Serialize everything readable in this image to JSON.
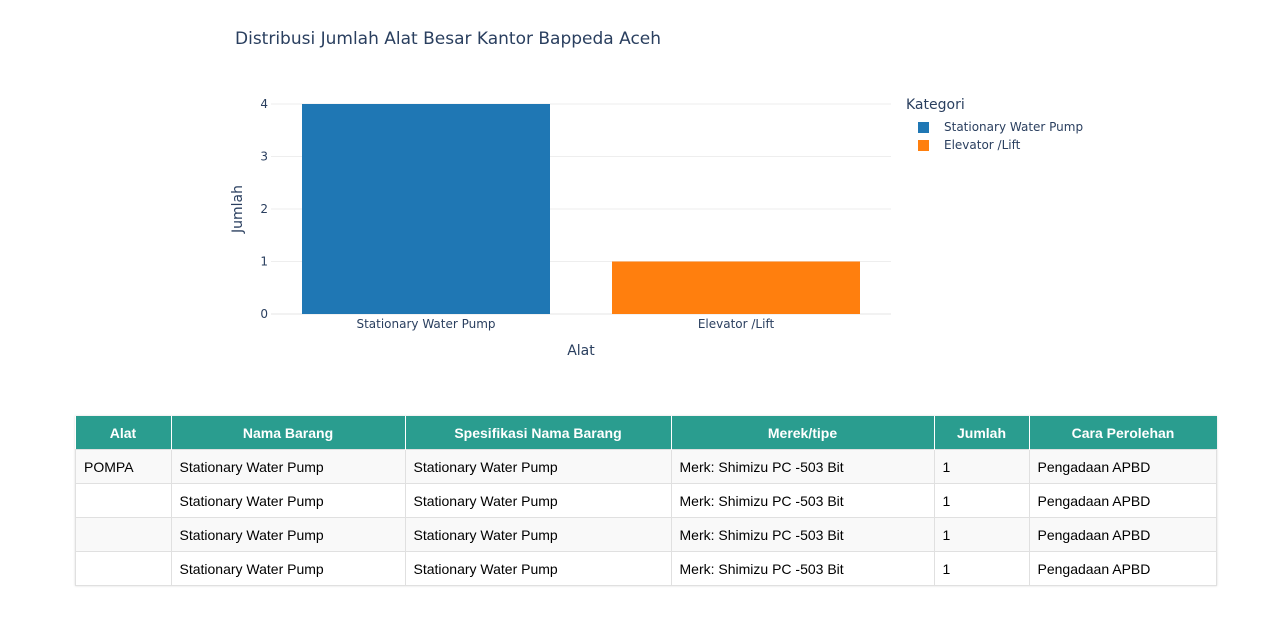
{
  "chart_data": {
    "type": "bar",
    "title": "Distribusi Jumlah Alat Besar Kantor Bappeda Aceh",
    "xlabel": "Alat",
    "ylabel": "Jumlah",
    "categories": [
      "Stationary Water Pump",
      "Elevator /Lift"
    ],
    "values": [
      4,
      1
    ],
    "colors": [
      "#1f77b4",
      "#ff7f0e"
    ],
    "ylim": [
      0,
      4
    ],
    "yticks": [
      0,
      1,
      2,
      3,
      4
    ],
    "grid": true,
    "legend_title": "Kategori",
    "legend": [
      {
        "label": "Stationary Water Pump",
        "color": "#1f77b4"
      },
      {
        "label": "Elevator /Lift",
        "color": "#ff7f0e"
      }
    ],
    "legend_position": "top-right"
  },
  "table": {
    "headers": [
      "Alat",
      "Nama Barang",
      "Spesifikasi Nama Barang",
      "Merek/tipe",
      "Jumlah",
      "Cara Perolehan"
    ],
    "rows": [
      [
        "POMPA",
        "Stationary Water Pump",
        "Stationary Water Pump",
        "Merk: Shimizu PC -503 Bit",
        "1",
        "Pengadaan APBD"
      ],
      [
        "",
        "Stationary Water Pump",
        "Stationary Water Pump",
        "Merk: Shimizu PC -503 Bit",
        "1",
        "Pengadaan APBD"
      ],
      [
        "",
        "Stationary Water Pump",
        "Stationary Water Pump",
        "Merk: Shimizu PC -503 Bit",
        "1",
        "Pengadaan APBD"
      ],
      [
        "",
        "Stationary Water Pump",
        "Stationary Water Pump",
        "Merk: Shimizu PC -503 Bit",
        "1",
        "Pengadaan APBD"
      ]
    ]
  },
  "colors": {
    "header_bg": "#2a9d8f",
    "text": "#2a3f5f"
  }
}
